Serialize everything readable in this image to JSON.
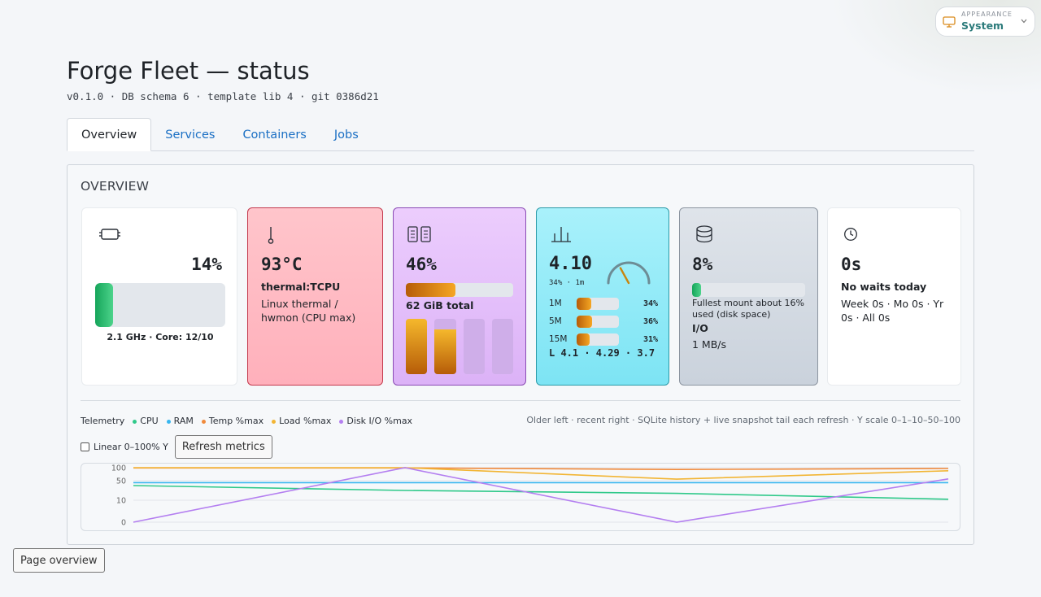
{
  "appearance": {
    "caption": "APPEARANCE",
    "value": "System"
  },
  "page": {
    "title": "Forge Fleet — status",
    "subtitle": "v0.1.0 · DB schema 6 · template lib 4 · git 0386d21"
  },
  "tabs": [
    {
      "label": "Overview",
      "active": true
    },
    {
      "label": "Services",
      "active": false
    },
    {
      "label": "Containers",
      "active": false
    },
    {
      "label": "Jobs",
      "active": false
    }
  ],
  "overview": {
    "heading": "OVERVIEW",
    "cpu": {
      "value": "14%",
      "fill": 0.14,
      "caption": "2.1 GHz · Core: 12/10"
    },
    "temp": {
      "value": "93°C",
      "sensor": "thermal:TCPU",
      "source": "Linux thermal / hwmon (CPU max)"
    },
    "ram": {
      "value": "46%",
      "fill": 0.46,
      "total": "62 GiB total",
      "bars": [
        1.0,
        0.81,
        0,
        0
      ]
    },
    "load": {
      "value": "4.10",
      "sub": "34% · 1m",
      "rows": [
        {
          "label": "1M",
          "pct": "34%",
          "fill": 0.34
        },
        {
          "label": "5M",
          "pct": "36%",
          "fill": 0.36
        },
        {
          "label": "15M",
          "pct": "31%",
          "fill": 0.31
        }
      ],
      "footer": "L 4.1 · 4.29 · 3.7",
      "gauge": 0.34
    },
    "disk": {
      "value": "8%",
      "fill": 0.08,
      "note": "Fullest mount about 16% used (disk space)",
      "io_label": "I/O",
      "io_value": "1 MB/s"
    },
    "waits": {
      "value": "0s",
      "headline": "No waits today",
      "detail": "Week 0s · Mo 0s · Yr 0s · All 0s"
    }
  },
  "telemetry": {
    "title": "Telemetry",
    "legend": [
      {
        "label": "CPU",
        "color": "#2fc98a"
      },
      {
        "label": "RAM",
        "color": "#38b6ef"
      },
      {
        "label": "Temp %max",
        "color": "#f08a3c"
      },
      {
        "label": "Load %max",
        "color": "#f2b534"
      },
      {
        "label": "Disk I/O %max",
        "color": "#b47ff0"
      }
    ],
    "note": "Older left · recent right · SQLite history + live snapshot tail each refresh · Y scale 0–1–10–50–100",
    "linear_label": "Linear 0–100% Y",
    "refresh_label": "Refresh metrics"
  },
  "chart_data": {
    "type": "line",
    "yscale": "symlog",
    "yticks": [
      "100",
      "50",
      "10",
      "0"
    ],
    "x": [
      0,
      1,
      2,
      3
    ],
    "series": [
      {
        "name": "CPU",
        "color": "#2fc98a",
        "values": [
          40,
          30,
          24,
          12
        ]
      },
      {
        "name": "RAM",
        "color": "#38b6ef",
        "values": [
          46,
          46,
          46,
          46
        ]
      },
      {
        "name": "Temp %max",
        "color": "#f08a3c",
        "values": [
          99,
          99,
          93,
          97
        ]
      },
      {
        "name": "Load %max",
        "color": "#f2b534",
        "values": [
          100,
          100,
          56,
          88
        ]
      },
      {
        "name": "Disk I/O %max",
        "color": "#b47ff0",
        "values": [
          0,
          100,
          0,
          57
        ]
      }
    ]
  },
  "footer": {
    "page_overview": "Page overview"
  }
}
